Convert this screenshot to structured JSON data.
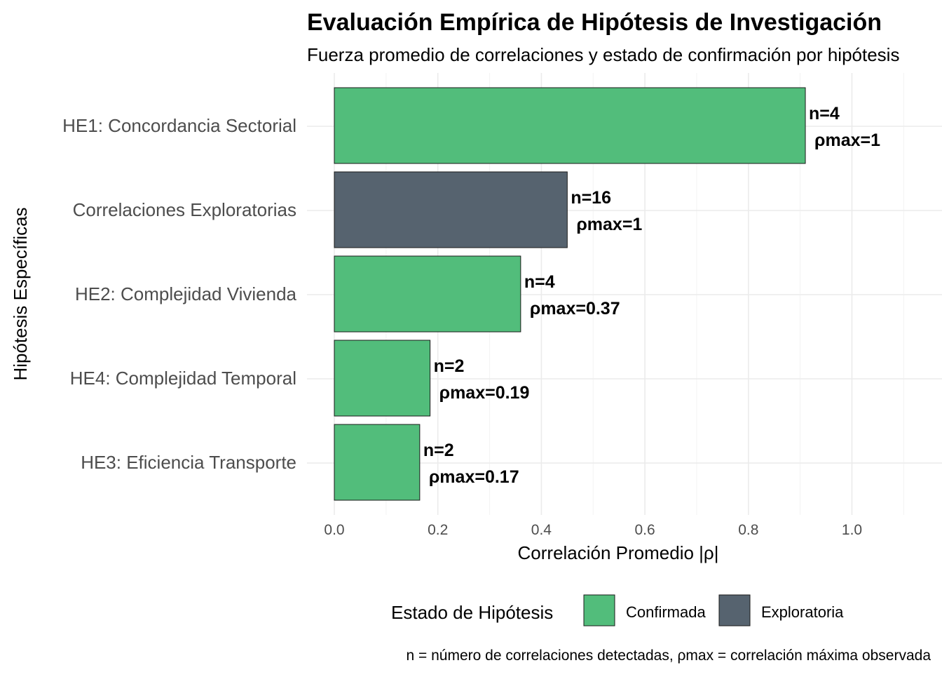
{
  "chart_data": {
    "type": "bar",
    "orientation": "horizontal",
    "title": "Evaluación Empírica de Hipótesis de Investigación",
    "subtitle": "Fuerza promedio de correlaciones y estado de confirmación por hipótesis",
    "xlabel": "Correlación Promedio |ρ|",
    "ylabel": "Hipótesis Específicas",
    "xlim": [
      0,
      1.1
    ],
    "x_ticks": [
      0.0,
      0.2,
      0.4,
      0.6,
      0.8,
      1.0
    ],
    "x_tick_labels": [
      "0.0",
      "0.2",
      "0.4",
      "0.6",
      "0.8",
      "1.0"
    ],
    "grid": true,
    "categories": [
      "HE1: Concordancia Sectorial",
      "Correlaciones Exploratorias",
      "HE2: Complejidad Vivienda",
      "HE4: Complejidad Temporal",
      "HE3: Eficiencia Transporte"
    ],
    "values": [
      0.91,
      0.45,
      0.36,
      0.185,
      0.165
    ],
    "status": [
      "Confirmada",
      "Exploratoria",
      "Confirmada",
      "Confirmada",
      "Confirmada"
    ],
    "n_labels": [
      "n=4",
      "n=16",
      "n=4",
      "n=2",
      "n=2"
    ],
    "rho_labels": [
      "ρmax=1",
      "ρmax=1",
      "ρmax=0.37",
      "ρmax=0.19",
      "ρmax=0.17"
    ],
    "legend": {
      "title": "Estado de Hipótesis",
      "position": "bottom",
      "entries": [
        {
          "label": "Confirmada",
          "color": "#52bd7b"
        },
        {
          "label": "Exploratoria",
          "color": "#56636f"
        }
      ]
    },
    "caption": "n = número de correlaciones detectadas, ρmax = correlación máxima observada"
  },
  "colors": {
    "Confirmada": "#52bd7b",
    "Exploratoria": "#56636f",
    "bar_outline": "#1a1a1a"
  }
}
